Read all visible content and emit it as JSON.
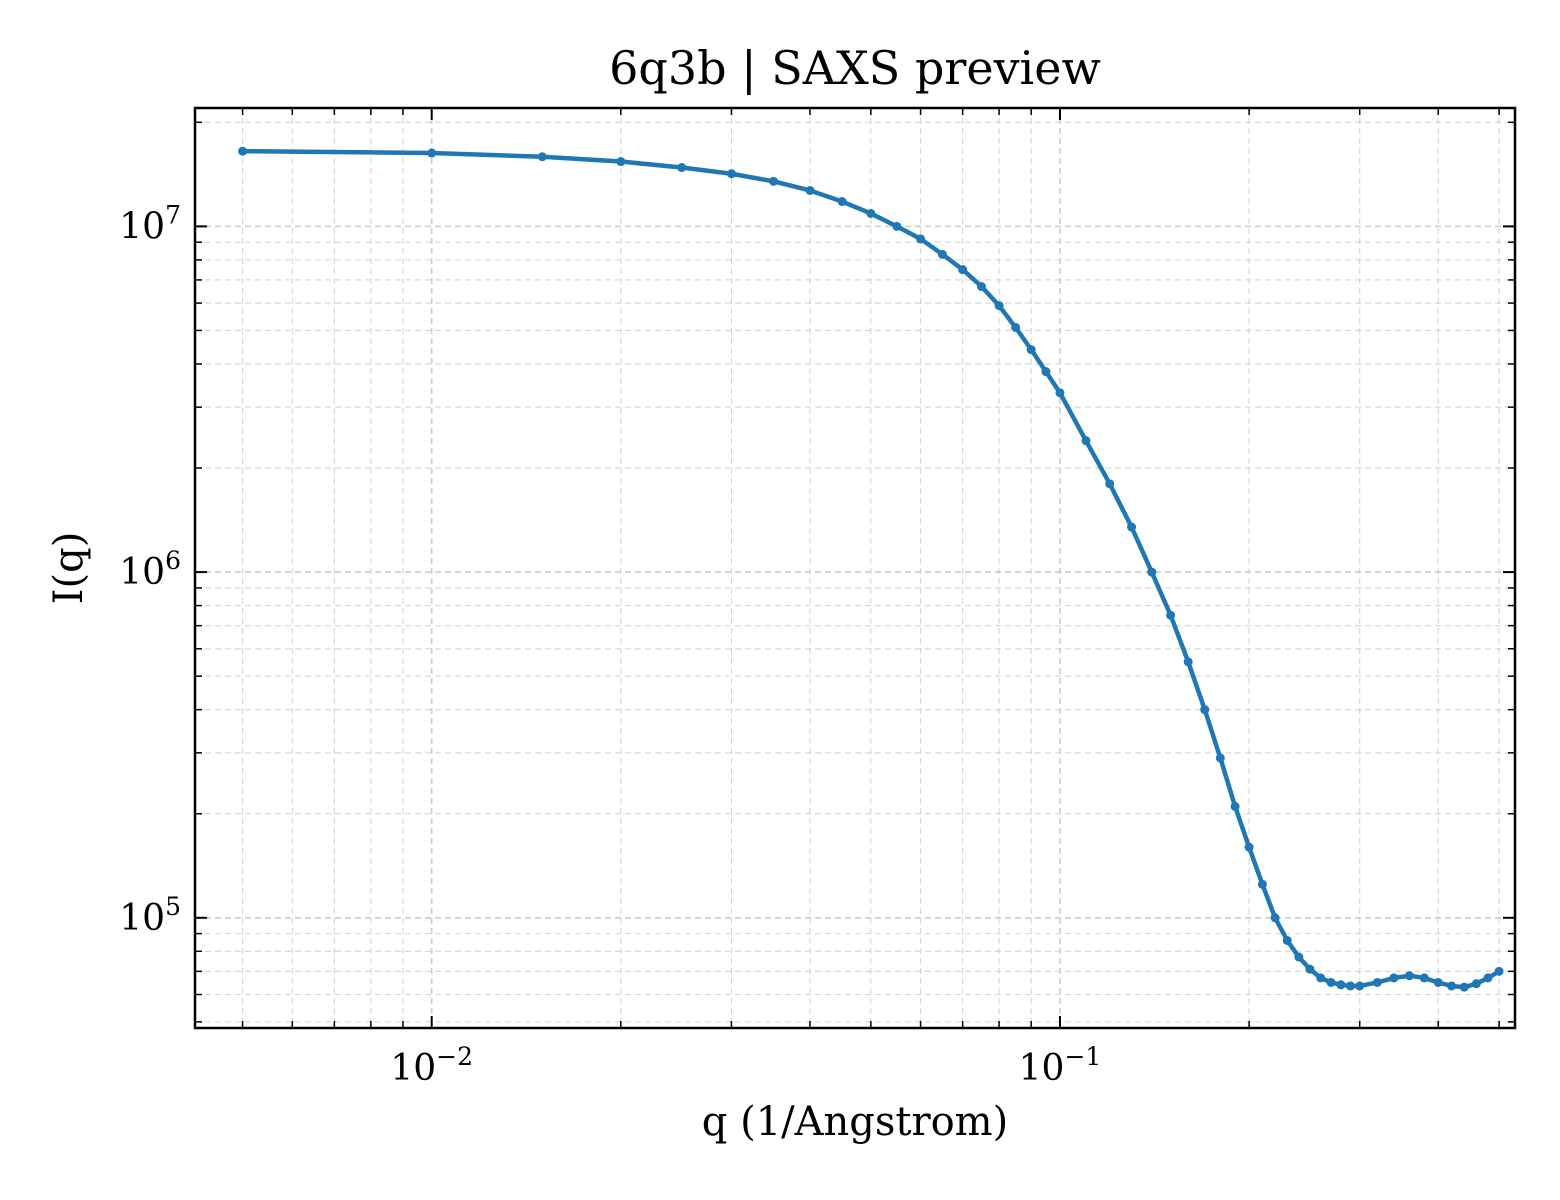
{
  "chart_data": {
    "type": "line",
    "title": "6q3b | SAXS preview",
    "xlabel": "q (1/Angstrom)",
    "ylabel": "I(q)",
    "xscale": "log",
    "yscale": "log",
    "xlim": [
      0.0042,
      0.53
    ],
    "ylim": [
      48000,
      22000000
    ],
    "grid": true,
    "legend": "none",
    "line_color": "#1f77b4",
    "x_ticks": [
      {
        "base": "10",
        "exp": "−2",
        "value": 0.01
      },
      {
        "base": "10",
        "exp": "−1",
        "value": 0.1
      }
    ],
    "y_ticks": [
      {
        "base": "10",
        "exp": "5",
        "value": 100000
      },
      {
        "base": "10",
        "exp": "6",
        "value": 1000000
      },
      {
        "base": "10",
        "exp": "7",
        "value": 10000000
      }
    ],
    "series": [
      {
        "x": [
          0.005,
          0.01,
          0.015,
          0.02,
          0.025,
          0.03,
          0.035,
          0.04,
          0.045,
          0.05,
          0.055,
          0.06,
          0.065,
          0.07,
          0.075,
          0.08,
          0.085,
          0.09,
          0.095,
          0.1,
          0.11,
          0.12,
          0.13,
          0.14,
          0.15,
          0.16,
          0.17,
          0.18,
          0.19,
          0.2,
          0.21,
          0.22,
          0.23,
          0.24,
          0.25,
          0.26,
          0.27,
          0.28,
          0.29,
          0.3,
          0.32,
          0.34,
          0.36,
          0.38,
          0.4,
          0.42,
          0.44,
          0.46,
          0.48,
          0.5
        ],
        "y": [
          16500000,
          16300000,
          15900000,
          15400000,
          14800000,
          14200000,
          13500000,
          12700000,
          11800000,
          10900000,
          10000000,
          9200000,
          8300000,
          7500000,
          6700000,
          5900000,
          5100000,
          4400000,
          3800000,
          3300000,
          2400000,
          1800000,
          1350000,
          1000000,
          750000,
          550000,
          400000,
          290000,
          210000,
          160000,
          125000,
          100000,
          86000,
          77000,
          71000,
          67000,
          65000,
          64000,
          63500,
          63500,
          65000,
          67000,
          68000,
          67000,
          65000,
          63500,
          63000,
          64500,
          67000,
          70000
        ]
      }
    ]
  }
}
